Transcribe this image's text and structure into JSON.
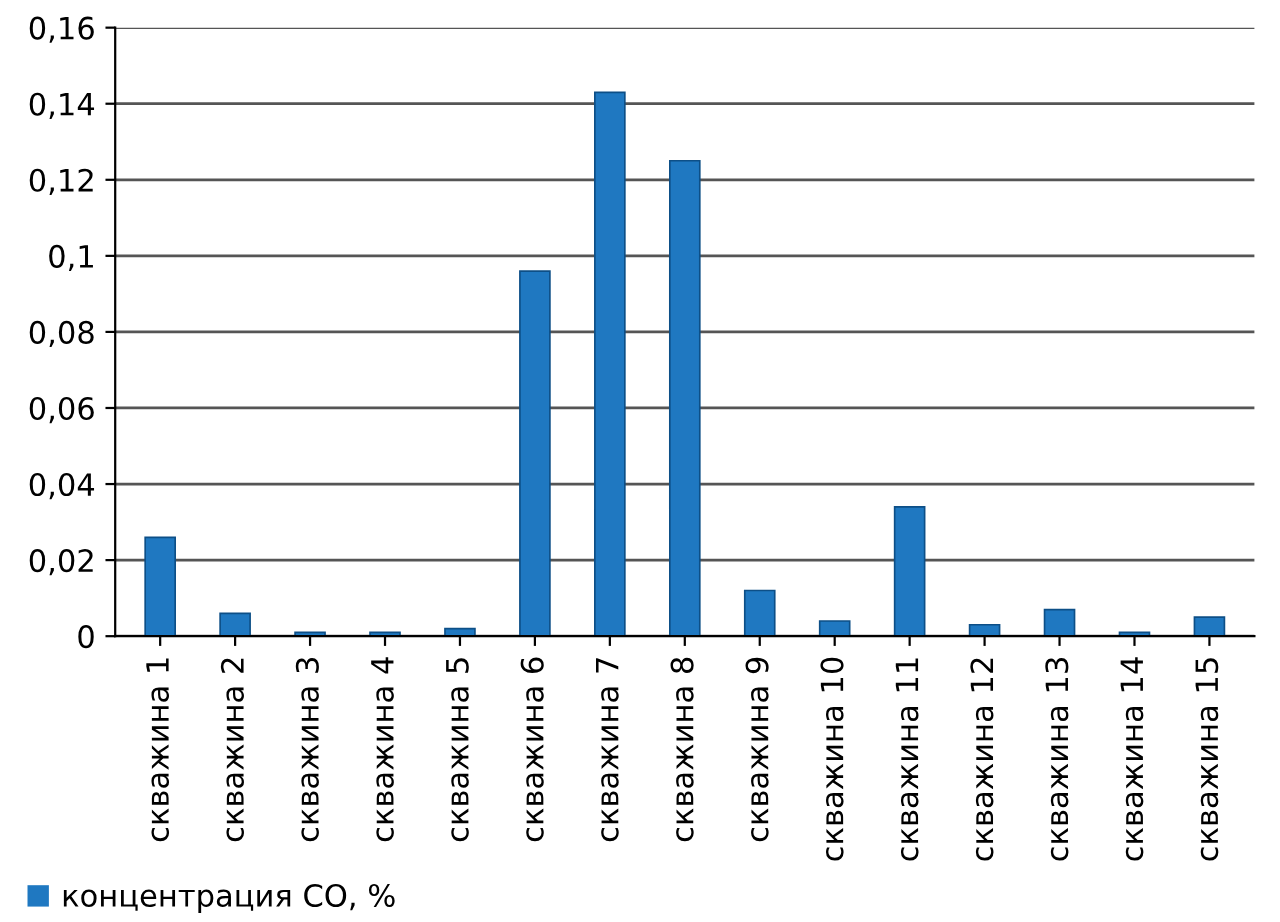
{
  "chart_data": {
    "type": "bar",
    "categories": [
      "скважина 1",
      "скважина 2",
      "скважина 3",
      "скважина 4",
      "скважина 5",
      "скважина 6",
      "скважина 7",
      "скважина 8",
      "скважина 9",
      "скважина 10",
      "скважина 11",
      "скважина 12",
      "скважина 13",
      "скважина 14",
      "скважина 15"
    ],
    "series": [
      {
        "name": "концентрация CO, %",
        "color": "#1f78c1",
        "values": [
          0.026,
          0.006,
          0.001,
          0.001,
          0.002,
          0.096,
          0.143,
          0.125,
          0.012,
          0.004,
          0.034,
          0.003,
          0.007,
          0.001,
          0.005
        ]
      }
    ],
    "ylim": [
      0,
      0.16
    ],
    "yticks": [
      0,
      {
        "value": 0.02,
        "label": "0,02"
      },
      {
        "value": 0.04,
        "label": "0,04"
      },
      {
        "value": 0.06,
        "label": "0,06"
      },
      {
        "value": 0.08,
        "label": "0,08"
      },
      {
        "value": 0.1,
        "label": "0,1"
      },
      {
        "value": 0.12,
        "label": "0,12"
      },
      {
        "value": 0.14,
        "label": "0,14"
      },
      {
        "value": 0.16,
        "label": "0,16"
      }
    ],
    "grid": "y",
    "legend": "bottom left"
  }
}
